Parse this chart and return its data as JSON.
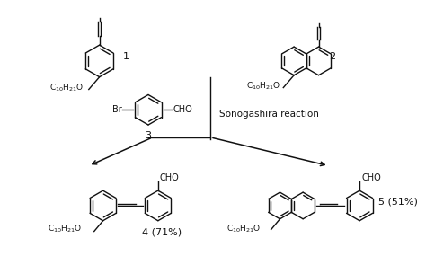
{
  "bg_color": "#ffffff",
  "line_color": "#111111",
  "text_color": "#111111",
  "figsize": [
    4.74,
    2.85
  ],
  "dpi": 100,
  "compound1_label": "1",
  "compound2_label": "2",
  "compound3_label": "3",
  "compound4_label": "4 (71%)",
  "compound5_label": "5 (51%)",
  "reaction_label": "Sonogashira reaction",
  "c10h21o_label": "C$_{10}$H$_{21}$O",
  "cho_label": "CHO",
  "br_label": "Br"
}
